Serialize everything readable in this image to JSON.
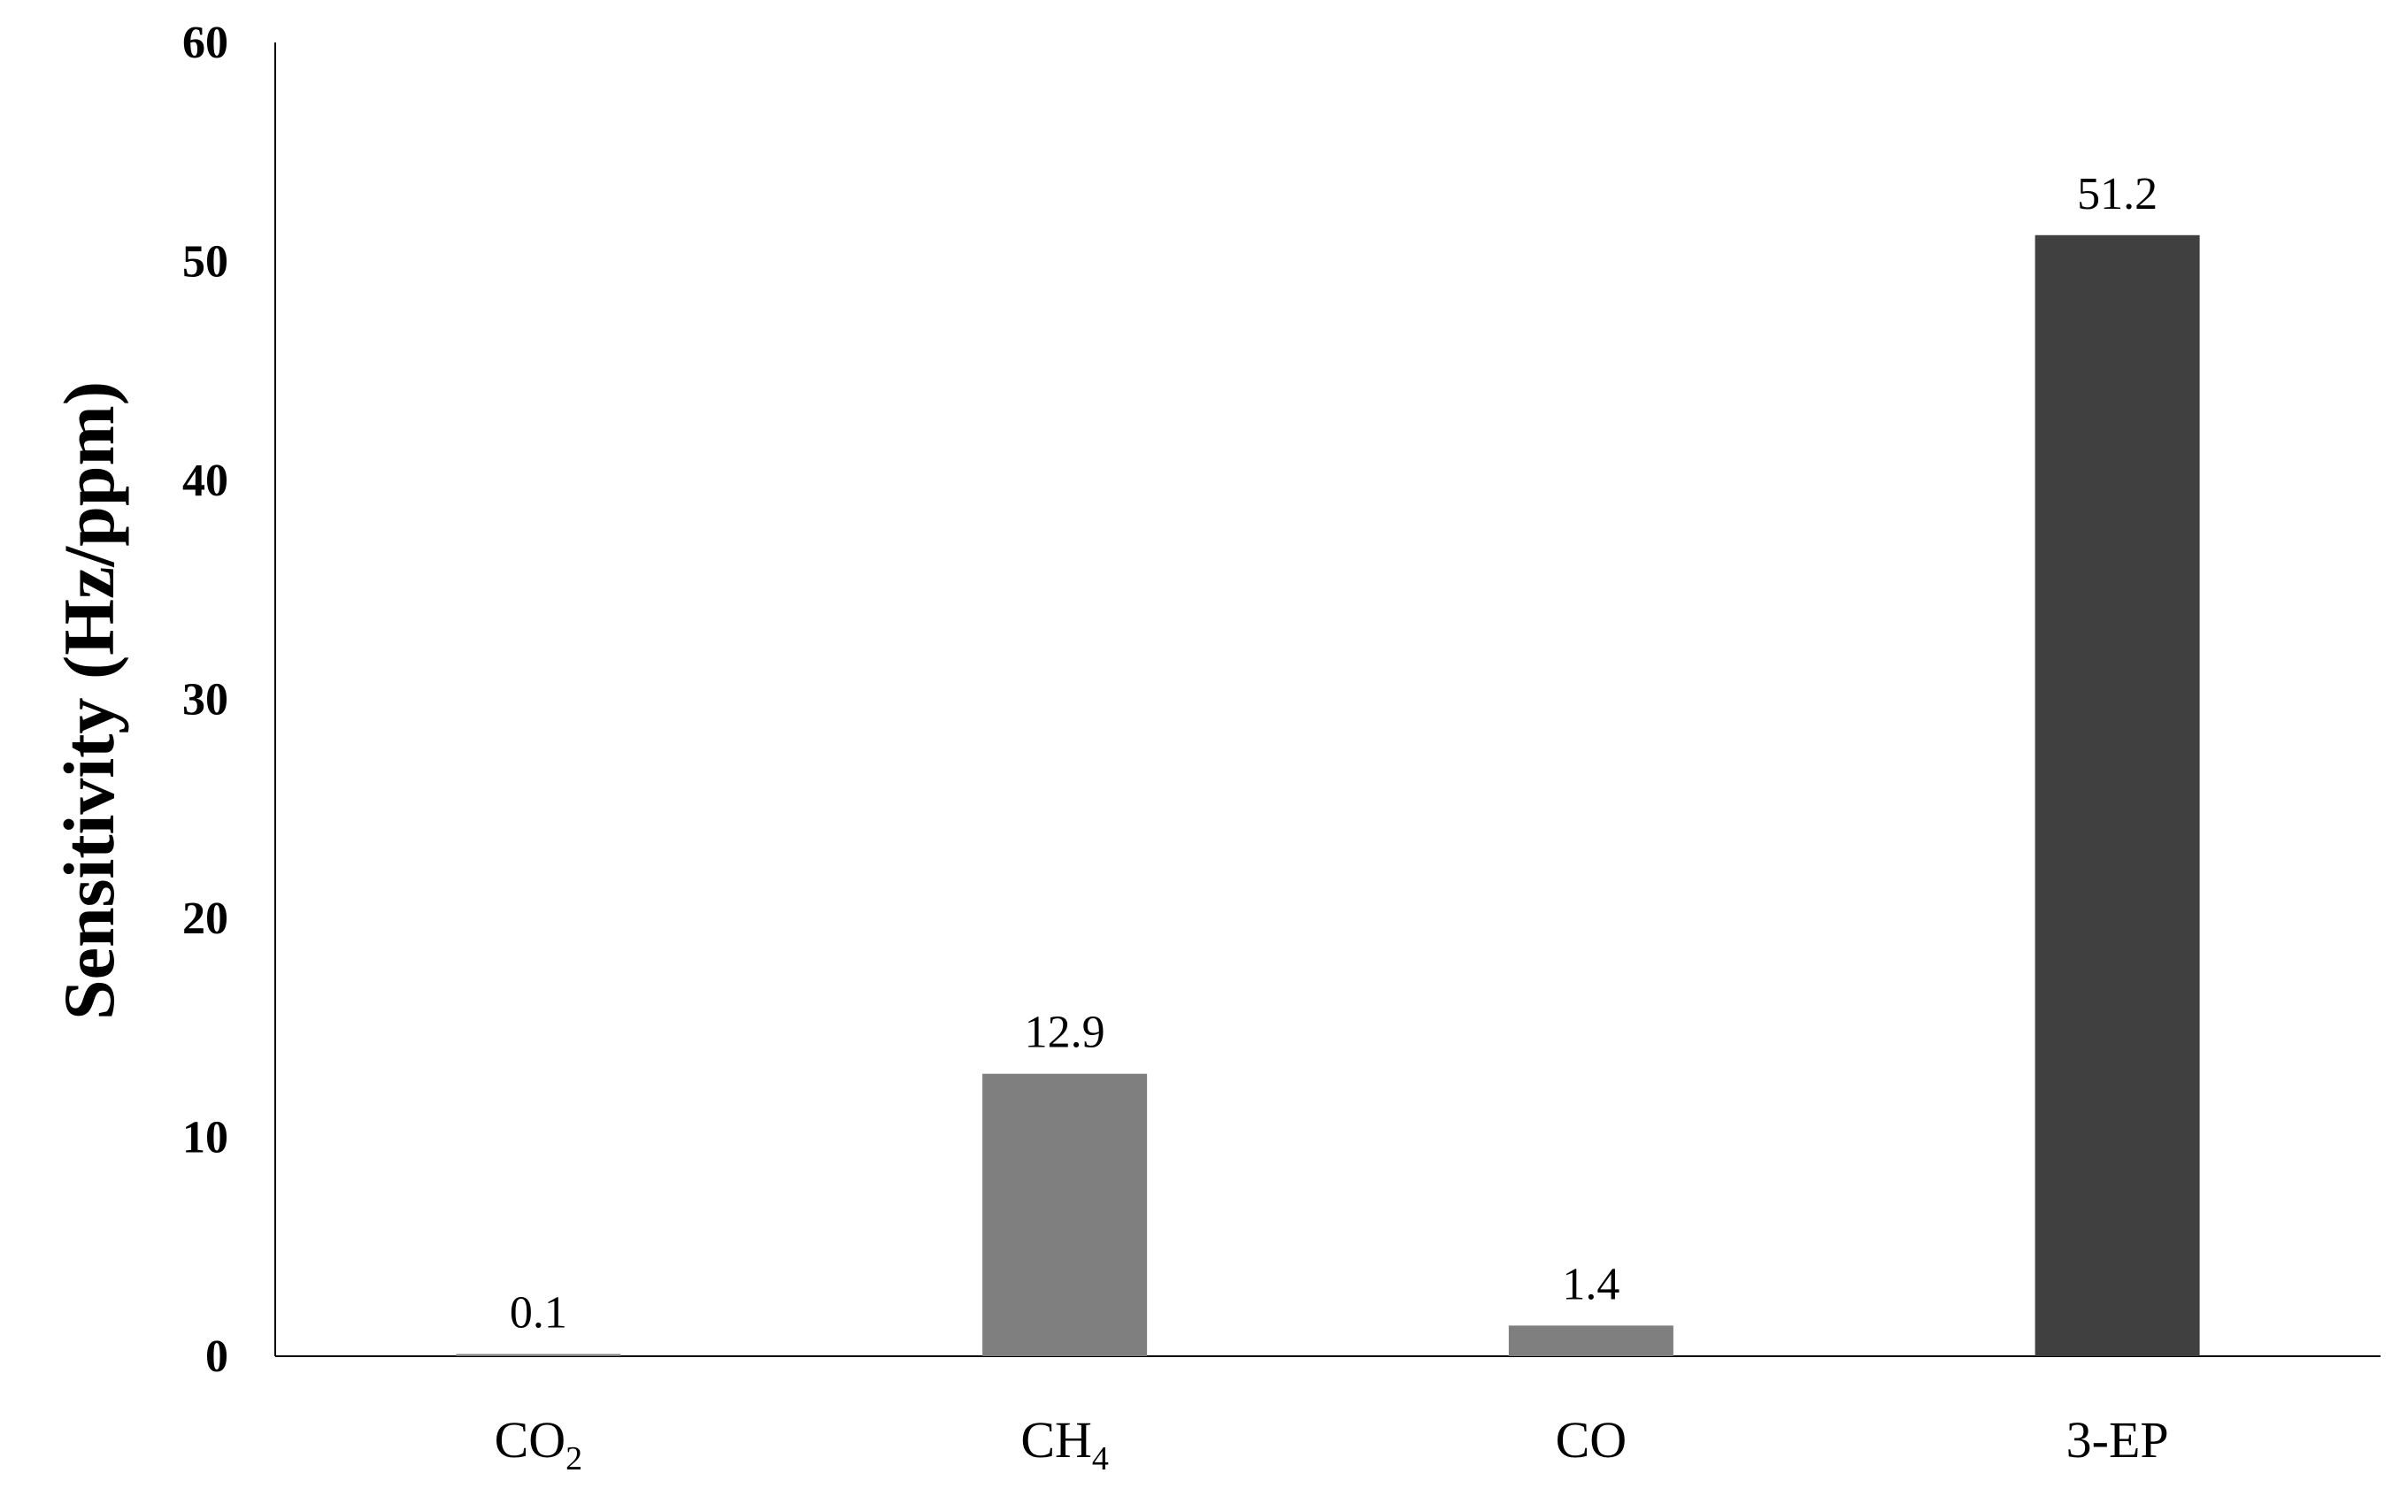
{
  "chart_data": {
    "type": "bar",
    "title": "",
    "xlabel": "",
    "ylabel": "Sensitivity (Hz/ppm)",
    "ylim": [
      0,
      60
    ],
    "yticks": [
      0,
      10,
      20,
      30,
      40,
      50,
      60
    ],
    "ytick_labels": [
      "0",
      "10",
      "20",
      "30",
      "40",
      "50",
      "60"
    ],
    "grid": false,
    "legend": "none",
    "categories": [
      {
        "label": "CO",
        "sub": "2"
      },
      {
        "label": "CH",
        "sub": "4"
      },
      {
        "label": "CO",
        "sub": ""
      },
      {
        "label": "3-EP",
        "sub": ""
      }
    ],
    "values": [
      0.1,
      12.9,
      1.4,
      51.2
    ],
    "data_labels": [
      "0.1",
      "12.9",
      "1.4",
      "51.2"
    ],
    "colors": [
      "#7f7f7f",
      "#7f7f7f",
      "#7f7f7f",
      "#404040"
    ]
  }
}
